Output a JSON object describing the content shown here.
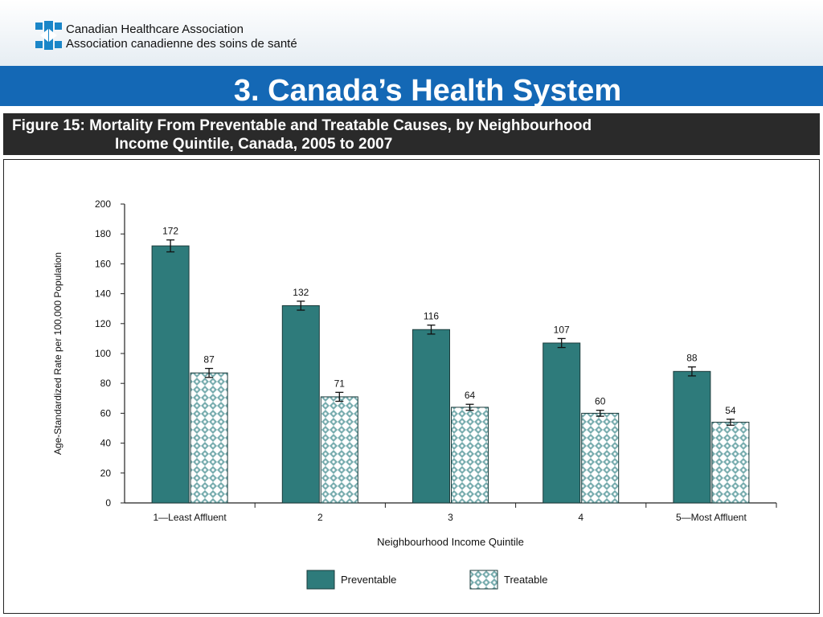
{
  "header": {
    "org_line1": "Canadian Healthcare Association",
    "org_line2": "Association canadienne des soins de santé",
    "brand_color": "#1468b5",
    "logo_icon": "maple-leaf-logo-icon"
  },
  "slide": {
    "title": "3. Canada’s Health System"
  },
  "figure": {
    "caption_line1": "Figure 15: Mortality From Preventable and Treatable Causes, by Neighbourhood",
    "caption_line2": "Income Quintile, Canada, 2005 to 2007"
  },
  "chart_data": {
    "type": "bar",
    "categories": [
      "1—Least Affluent",
      "2",
      "3",
      "4",
      "5—Most Affluent"
    ],
    "series": [
      {
        "name": "Preventable",
        "values": [
          172,
          132,
          116,
          107,
          88
        ],
        "color": "#2e7b7b",
        "pattern": "solid"
      },
      {
        "name": "Treatable",
        "values": [
          87,
          71,
          64,
          60,
          54
        ],
        "color": "#5f9ea0",
        "pattern": "crosshatch"
      }
    ],
    "error_bars": {
      "Preventable": [
        4,
        3,
        3,
        3,
        3
      ],
      "Treatable": [
        3,
        3,
        2,
        2,
        2
      ]
    },
    "xlabel": "Neighbourhood Income Quintile",
    "ylabel": "Age-Standardized Rate per 100,000 Population",
    "ylim": [
      0,
      200
    ],
    "yticks": [
      0,
      20,
      40,
      60,
      80,
      100,
      120,
      140,
      160,
      180,
      200
    ],
    "grid": false,
    "legend_position": "bottom"
  }
}
